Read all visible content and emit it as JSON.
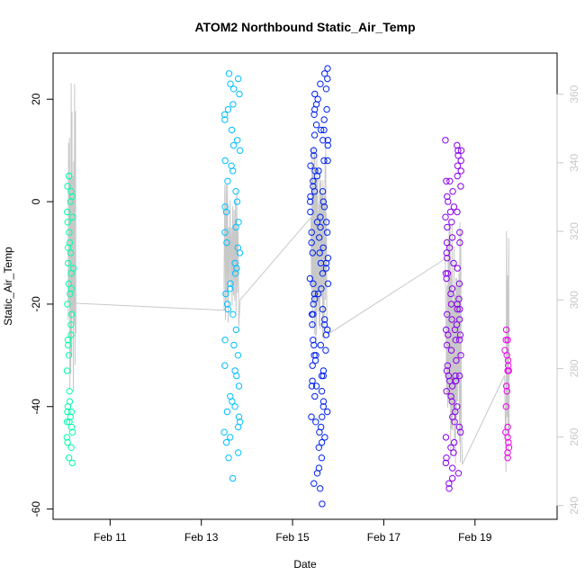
{
  "chart_data": {
    "type": "scatter",
    "title": "ATOM2 Northbound Static_Air_Temp",
    "xlabel": "Date",
    "ylabel": "Static_Air_Temp",
    "x_ticks": [
      "Feb 11",
      "Feb 13",
      "Feb 15",
      "Feb 17",
      "Feb 19"
    ],
    "x_tick_days": [
      11,
      13,
      15,
      17,
      19
    ],
    "xlim_days": [
      9.75,
      20.8
    ],
    "y_ticks": [
      20,
      0,
      -20,
      -40,
      -60
    ],
    "ylim": [
      -62,
      29
    ],
    "y2_ticks": [
      240,
      260,
      280,
      300,
      320,
      340,
      360
    ],
    "y2lim": [
      236,
      372
    ],
    "y2_color": "#c8c8c8",
    "point_colors": [
      "#00ffaa",
      "#00bfff",
      "#0022ee",
      "#8800ee",
      "#ee00ee"
    ],
    "line_color": "#c8c8c8",
    "grid": false,
    "legend": "none",
    "point_groups": [
      {
        "x_range": [
          10.05,
          10.2
        ],
        "y": [
          5,
          3,
          2,
          0,
          -2,
          -4,
          -6,
          -8,
          -10,
          -12,
          -14,
          -16,
          -18,
          -20,
          -22,
          -26,
          -28,
          -30,
          -33,
          -37,
          -39,
          -40,
          -41,
          -42,
          -43,
          -44,
          -46,
          -47,
          -48,
          -50,
          -51,
          5,
          1,
          -3,
          -9,
          -13,
          -17,
          -24,
          -27,
          -41,
          -43,
          -45
        ]
      },
      {
        "x_range": [
          13.5,
          13.85
        ],
        "y": [
          25,
          24,
          23,
          21,
          19,
          18,
          16,
          14,
          12,
          10,
          8,
          6,
          4,
          2,
          0,
          -2,
          -4,
          -6,
          -8,
          -10,
          -12,
          -14,
          -16,
          -18,
          -20,
          -22,
          -25,
          -27,
          -30,
          -32,
          -33,
          -34,
          -38,
          -39,
          -40,
          -41,
          -42,
          -43,
          -44,
          -46,
          -47,
          -49,
          -50,
          -54,
          22,
          17,
          11,
          7,
          -1,
          -5,
          -9,
          -13,
          -17,
          -21,
          -28,
          -36,
          -45
        ]
      },
      {
        "x_range": [
          15.38,
          15.78
        ],
        "y": [
          26,
          25,
          23,
          21,
          20,
          19,
          18,
          17,
          16,
          15,
          14,
          13,
          12,
          11,
          10,
          9,
          8,
          7,
          6,
          5,
          4,
          3,
          2,
          1,
          0,
          -1,
          -2,
          -3,
          -4,
          -5,
          -6,
          -7,
          -8,
          -9,
          -10,
          -11,
          -12,
          -13,
          -14,
          -15,
          -16,
          -17,
          -18,
          -19,
          -20,
          -21,
          -22,
          -23,
          -24,
          -25,
          -26,
          -27,
          -28,
          -29,
          -30,
          -31,
          -32,
          -33,
          -34,
          -35,
          -36,
          -37,
          -38,
          -39,
          -40,
          -41,
          -42,
          -43,
          -44,
          -45,
          -46,
          -47,
          -48,
          -50,
          -52,
          -53,
          -55,
          -56,
          -59,
          24,
          18,
          12,
          6,
          0,
          -6,
          -12,
          -18,
          -24,
          -30,
          -36,
          -42,
          22,
          14,
          8,
          2,
          -4,
          -10,
          -16,
          -22,
          -28,
          -34
        ]
      },
      {
        "x_range": [
          18.35,
          18.7
        ],
        "y": [
          12,
          11,
          10,
          9,
          8,
          7,
          6,
          5,
          4,
          3,
          2,
          1,
          0,
          -1,
          -2,
          -3,
          -4,
          -5,
          -6,
          -7,
          -8,
          -9,
          -10,
          -11,
          -12,
          -13,
          -14,
          -15,
          -16,
          -17,
          -18,
          -19,
          -20,
          -21,
          -22,
          -23,
          -24,
          -25,
          -26,
          -27,
          -28,
          -29,
          -30,
          -31,
          -32,
          -33,
          -34,
          -35,
          -36,
          -37,
          -38,
          -39,
          -40,
          -41,
          -42,
          -43,
          -44,
          -45,
          -46,
          -47,
          -48,
          -49,
          -50,
          -51,
          -52,
          -53,
          -54,
          -55,
          -56,
          10,
          4,
          -2,
          -8,
          -14,
          -20,
          -26,
          -34,
          -35,
          -34,
          -35,
          -21,
          -23,
          -25,
          -27
        ]
      },
      {
        "x_range": [
          19.65,
          19.75
        ],
        "y": [
          -25,
          -27,
          -29,
          -30,
          -31,
          -32,
          -33,
          -36,
          -37,
          -40,
          -44,
          -46,
          -47,
          -48,
          -49,
          -50,
          -27,
          -33,
          -45
        ]
      }
    ]
  }
}
